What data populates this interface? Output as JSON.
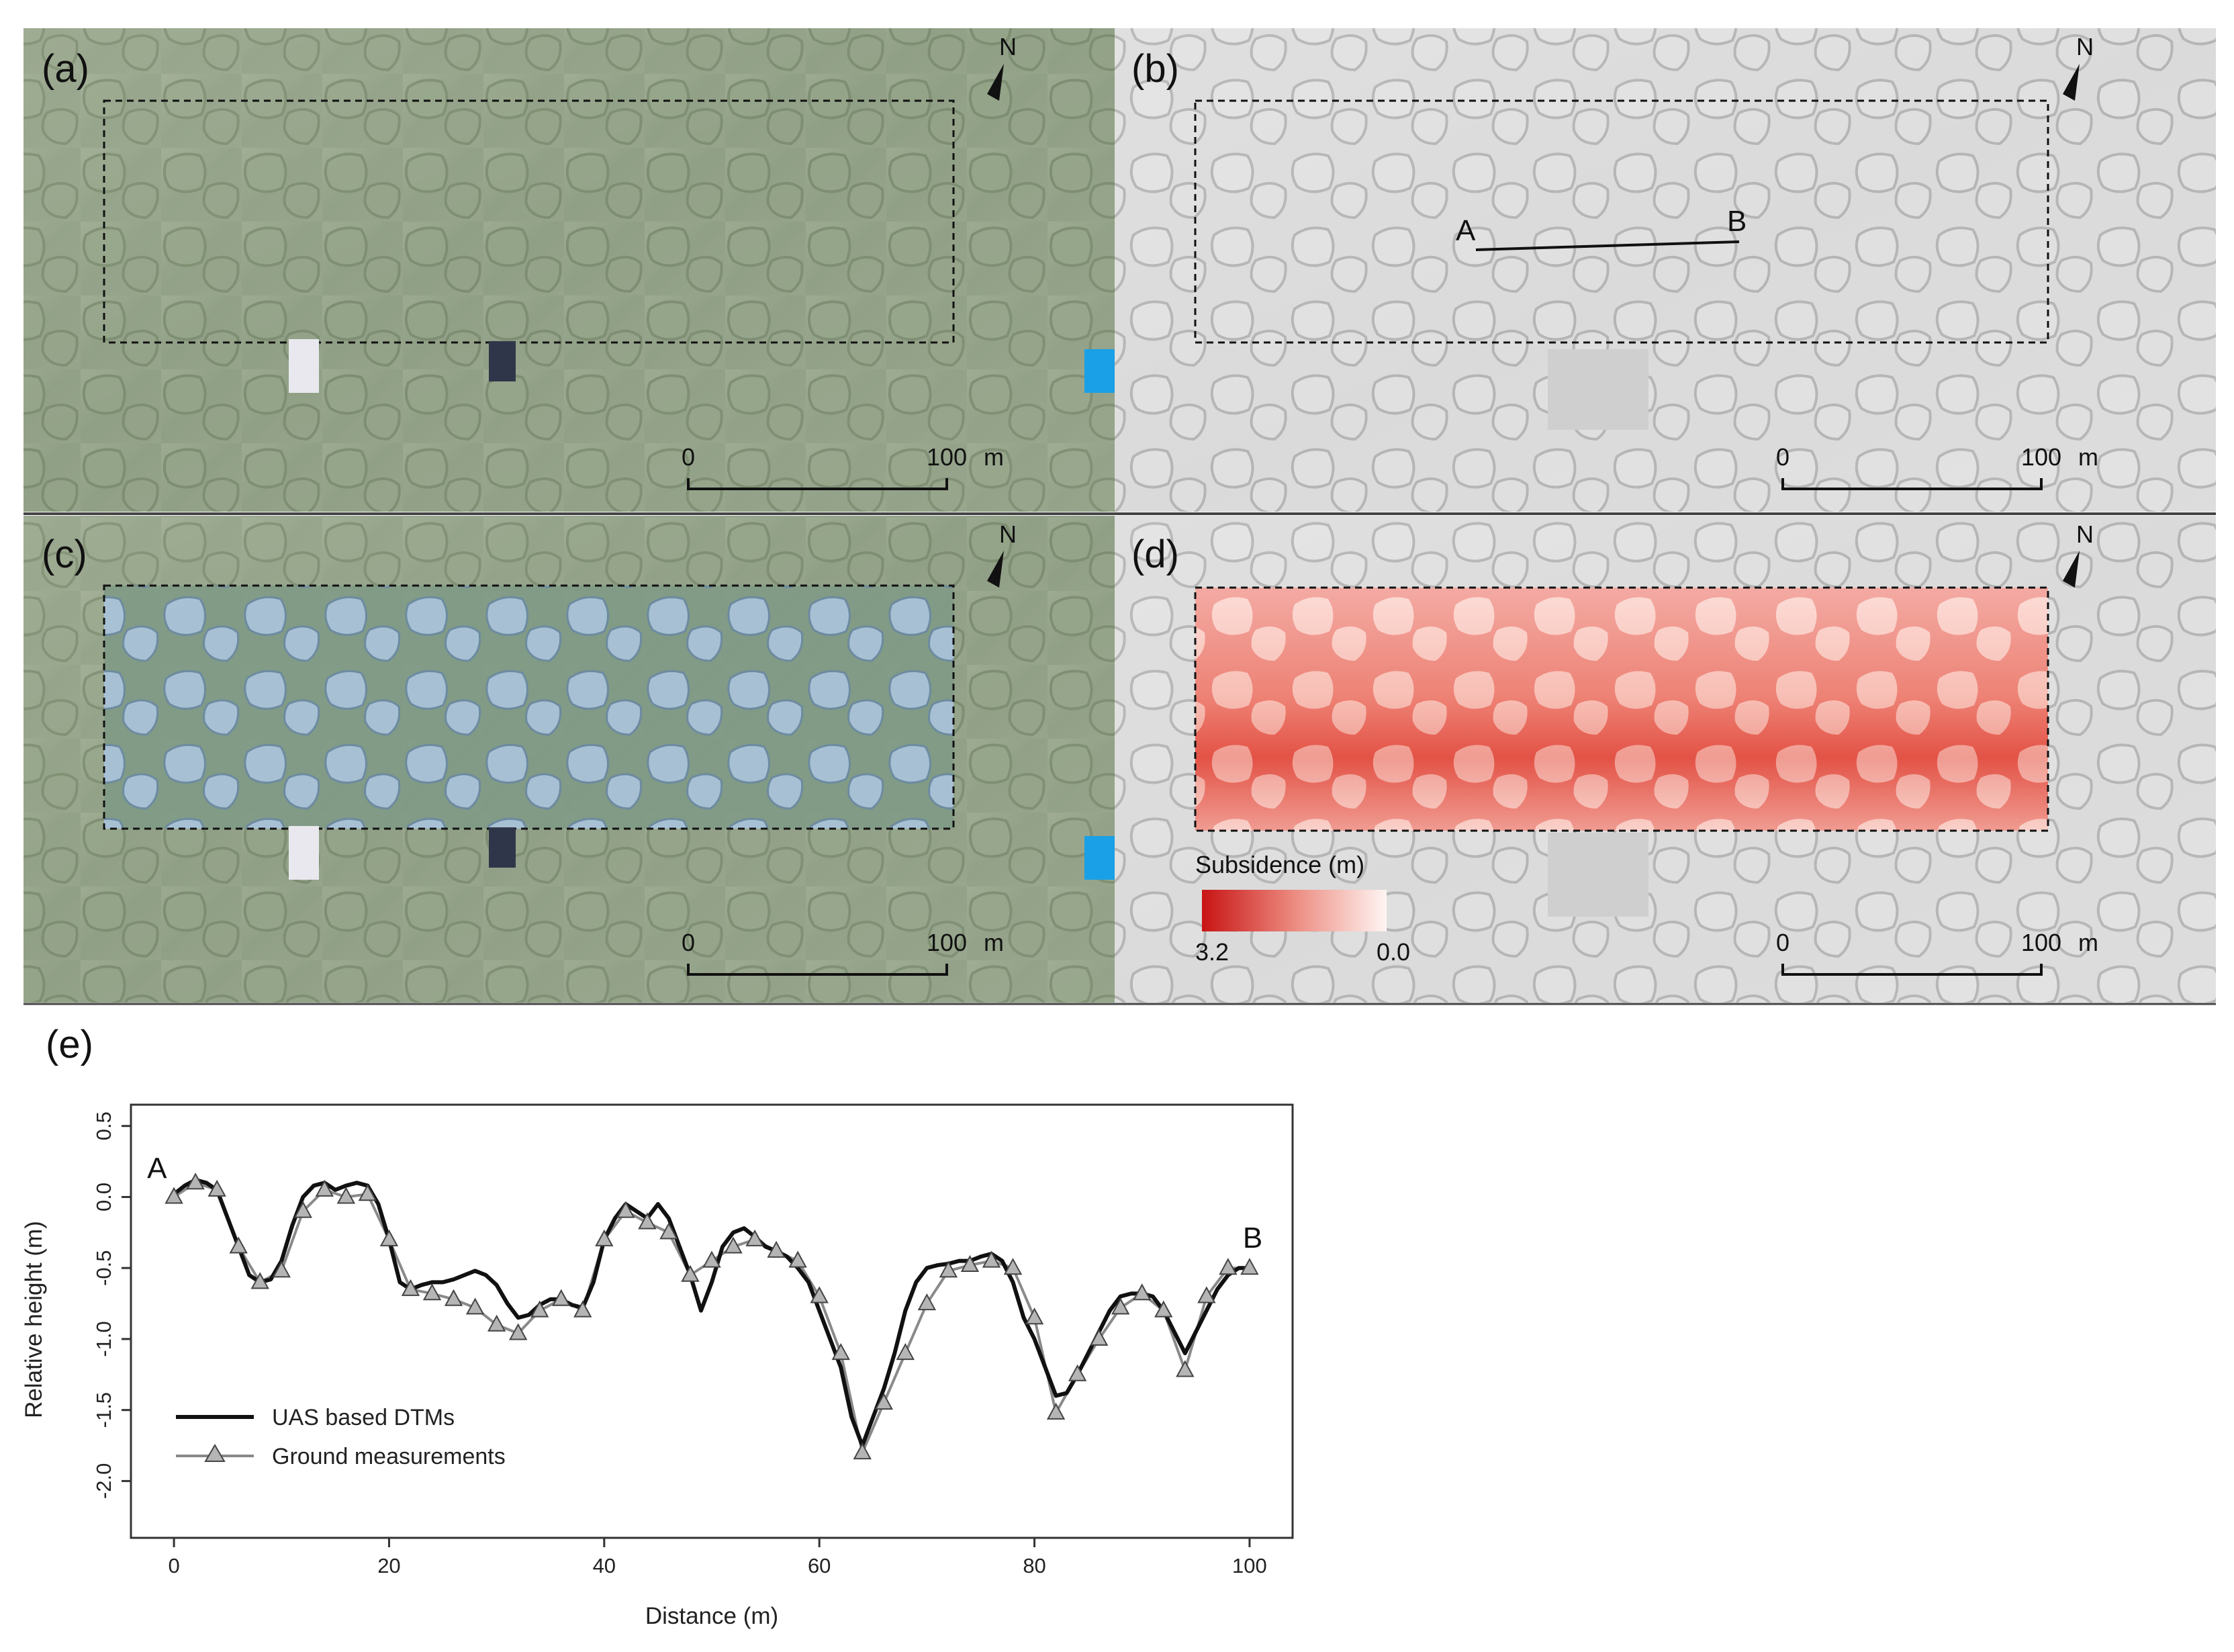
{
  "panels": {
    "a": {
      "label": "(a)"
    },
    "b": {
      "label": "(b)",
      "transect_start": "A",
      "transect_end": "B"
    },
    "c": {
      "label": "(c)"
    },
    "d": {
      "label": "(d)",
      "colorbar_title": "Subsidence (m)",
      "colorbar_max": "3.2",
      "colorbar_min": "0.0"
    },
    "e": {
      "label": "(e)"
    }
  },
  "scalebar": {
    "start": "0",
    "end": "100",
    "unit": "m"
  },
  "north_label": "N",
  "colors": {
    "aerial_green": "#8f9f85",
    "hillshade_grey": "#d9d9d9",
    "polygon_fill": "#a9c3dc",
    "subsidence_high": "#d11a1a",
    "subsidence_low": "#ffffff",
    "uas_line": "#111111",
    "ground_line": "#888888"
  },
  "chart_data": {
    "type": "line",
    "xlabel": "Distance (m)",
    "ylabel": "Relative height (m)",
    "xlim": [
      -4,
      104
    ],
    "ylim": [
      -2.4,
      0.65
    ],
    "xticks": [
      0,
      20,
      40,
      60,
      80,
      100
    ],
    "yticks": [
      0.5,
      0.0,
      -0.5,
      -1.0,
      -1.5,
      -2.0
    ],
    "xtick_labels": [
      "0",
      "20",
      "40",
      "60",
      "80",
      "100"
    ],
    "ytick_labels": [
      "0.5",
      "0.0",
      "-0.5",
      "-1.0",
      "-1.5",
      "-2.0"
    ],
    "grid": false,
    "legend_position": "bottom-left",
    "start_label": "A",
    "end_label": "B",
    "series": [
      {
        "name": "UAS based DTMs",
        "marker": "none",
        "x": [
          0,
          1,
          2,
          3,
          4,
          5,
          6,
          7,
          8,
          9,
          10,
          11,
          12,
          13,
          14,
          15,
          16,
          17,
          18,
          19,
          20,
          21,
          22,
          23,
          24,
          25,
          26,
          27,
          28,
          29,
          30,
          31,
          32,
          33,
          34,
          35,
          36,
          37,
          38,
          39,
          40,
          41,
          42,
          43,
          44,
          45,
          46,
          47,
          48,
          49,
          50,
          51,
          52,
          53,
          54,
          55,
          56,
          57,
          58,
          59,
          60,
          61,
          62,
          63,
          64,
          65,
          66,
          67,
          68,
          69,
          70,
          71,
          72,
          73,
          74,
          75,
          76,
          77,
          78,
          79,
          80,
          81,
          82,
          83,
          84,
          85,
          86,
          87,
          88,
          89,
          90,
          91,
          92,
          93,
          94,
          95,
          96,
          97,
          98,
          99,
          100
        ],
        "y": [
          0.02,
          0.08,
          0.12,
          0.1,
          0.05,
          -0.15,
          -0.35,
          -0.55,
          -0.6,
          -0.58,
          -0.45,
          -0.2,
          0.0,
          0.08,
          0.1,
          0.05,
          0.08,
          0.1,
          0.08,
          -0.05,
          -0.3,
          -0.6,
          -0.65,
          -0.62,
          -0.6,
          -0.6,
          -0.58,
          -0.55,
          -0.52,
          -0.55,
          -0.62,
          -0.75,
          -0.85,
          -0.83,
          -0.76,
          -0.72,
          -0.72,
          -0.76,
          -0.78,
          -0.6,
          -0.3,
          -0.15,
          -0.05,
          -0.1,
          -0.15,
          -0.05,
          -0.15,
          -0.35,
          -0.55,
          -0.8,
          -0.6,
          -0.35,
          -0.25,
          -0.22,
          -0.28,
          -0.35,
          -0.38,
          -0.42,
          -0.5,
          -0.6,
          -0.8,
          -1.0,
          -1.2,
          -1.55,
          -1.75,
          -1.55,
          -1.35,
          -1.1,
          -0.8,
          -0.6,
          -0.5,
          -0.48,
          -0.47,
          -0.45,
          -0.45,
          -0.42,
          -0.4,
          -0.45,
          -0.6,
          -0.85,
          -1.0,
          -1.2,
          -1.4,
          -1.38,
          -1.25,
          -1.1,
          -0.95,
          -0.8,
          -0.7,
          -0.68,
          -0.68,
          -0.7,
          -0.8,
          -0.95,
          -1.1,
          -0.95,
          -0.8,
          -0.65,
          -0.55,
          -0.5,
          -0.5
        ]
      },
      {
        "name": "Ground measurements",
        "marker": "triangle",
        "x": [
          0,
          2,
          4,
          6,
          8,
          10,
          12,
          14,
          16,
          18,
          20,
          22,
          24,
          26,
          28,
          30,
          32,
          34,
          36,
          38,
          40,
          42,
          44,
          46,
          48,
          50,
          52,
          54,
          56,
          58,
          60,
          62,
          64,
          66,
          68,
          70,
          72,
          74,
          76,
          78,
          80,
          82,
          84,
          86,
          88,
          90,
          92,
          94,
          96,
          98,
          100
        ],
        "y": [
          0.0,
          0.1,
          0.05,
          -0.35,
          -0.6,
          -0.52,
          -0.1,
          0.05,
          0.0,
          0.02,
          -0.3,
          -0.65,
          -0.68,
          -0.72,
          -0.78,
          -0.9,
          -0.96,
          -0.8,
          -0.72,
          -0.8,
          -0.3,
          -0.1,
          -0.18,
          -0.25,
          -0.55,
          -0.45,
          -0.35,
          -0.3,
          -0.38,
          -0.45,
          -0.7,
          -1.1,
          -1.8,
          -1.45,
          -1.1,
          -0.75,
          -0.52,
          -0.48,
          -0.45,
          -0.5,
          -0.85,
          -1.52,
          -1.25,
          -1.0,
          -0.78,
          -0.68,
          -0.8,
          -1.22,
          -0.7,
          -0.5,
          -0.5
        ]
      }
    ]
  }
}
